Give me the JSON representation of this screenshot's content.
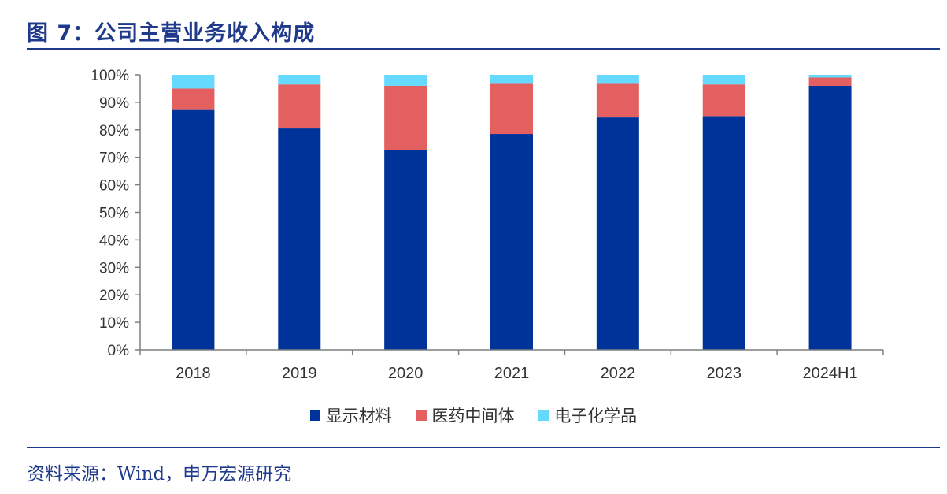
{
  "header": {
    "title": "图 7：公司主营业务收入构成"
  },
  "footer": {
    "source": "资料来源：Wind，申万宏源研究"
  },
  "chart_data": {
    "type": "bar",
    "stacked": true,
    "categories": [
      "2018",
      "2019",
      "2020",
      "2021",
      "2022",
      "2023",
      "2024H1"
    ],
    "series": [
      {
        "name": "显示材料",
        "color": "#003399",
        "values": [
          87.5,
          80.5,
          72.5,
          78.5,
          84.5,
          85.0,
          96.0
        ]
      },
      {
        "name": "医药中间体",
        "color": "#e46060",
        "values": [
          7.5,
          16.0,
          23.5,
          18.5,
          12.5,
          11.5,
          3.0
        ]
      },
      {
        "name": "电子化学品",
        "color": "#66d9ff",
        "values": [
          5.0,
          3.5,
          4.0,
          3.0,
          3.0,
          3.5,
          1.0
        ]
      }
    ],
    "yticks": [
      "0%",
      "10%",
      "20%",
      "30%",
      "40%",
      "50%",
      "60%",
      "70%",
      "80%",
      "90%",
      "100%"
    ],
    "ylim": [
      0,
      100
    ],
    "grid": false,
    "legend_position": "bottom"
  }
}
